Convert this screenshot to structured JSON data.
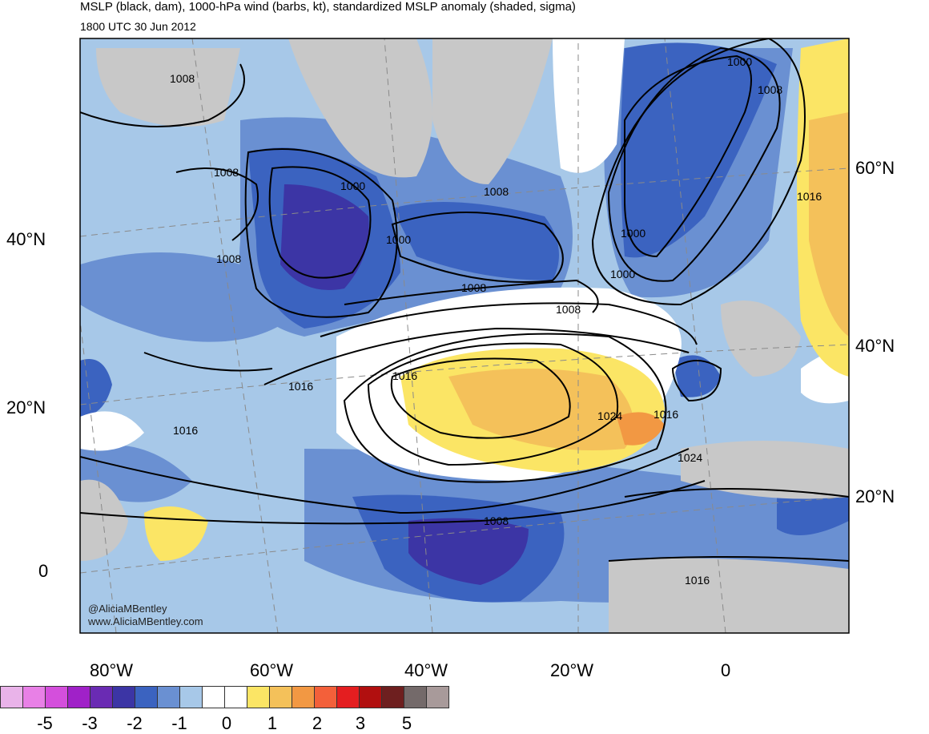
{
  "title": "MSLP (black, dam), 1000-hPa wind (barbs, kt), standardized MSLP anomaly (shaded, sigma)",
  "subtitle": "1800 UTC 30 Jun 2012",
  "credits": [
    "@AliciaMBentley",
    "www.AliciaMBentley.com"
  ],
  "lat_labels_left": [
    "40°N",
    "20°N",
    "0"
  ],
  "lat_labels_right": [
    "60°N",
    "40°N",
    "20°N"
  ],
  "lon_labels": [
    "80°W",
    "60°W",
    "40°W",
    "20°W",
    "0"
  ],
  "isobar_labels": [
    "1008",
    "1008",
    "1000",
    "1000",
    "1008",
    "1000",
    "1008",
    "1016",
    "1000",
    "1008",
    "1000",
    "1008",
    "1008",
    "1016",
    "1016",
    "1024",
    "1016",
    "1024",
    "1016",
    "1008",
    "1016",
    "1008"
  ],
  "colorbar": {
    "colors": [
      "#e9b3e9",
      "#e880e6",
      "#d44fdc",
      "#a021c8",
      "#6a2bb3",
      "#3c35a5",
      "#3b63c0",
      "#6a90d2",
      "#a7c8e8",
      "#ffffff",
      "#ffffff",
      "#fbe565",
      "#f4c15a",
      "#f29843",
      "#f3603a",
      "#e41e20",
      "#b10f0f",
      "#6e1f1f",
      "#746a6a",
      "#a89a9a"
    ],
    "labels": [
      "-5",
      "-3",
      "-2",
      "-1",
      "0",
      "1",
      "2",
      "3",
      "5"
    ]
  },
  "colors": {
    "ocean_base": "#a7c8e8",
    "land_gray": "#c8c8c8",
    "anomaly_neg_2": "#3b63c0",
    "anomaly_neg_3": "#3c35a5",
    "anomaly_pos_1": "#fbe565",
    "anomaly_pos_2": "#f29843",
    "isobar": "#000000",
    "graticule": "#8a8a8a"
  }
}
